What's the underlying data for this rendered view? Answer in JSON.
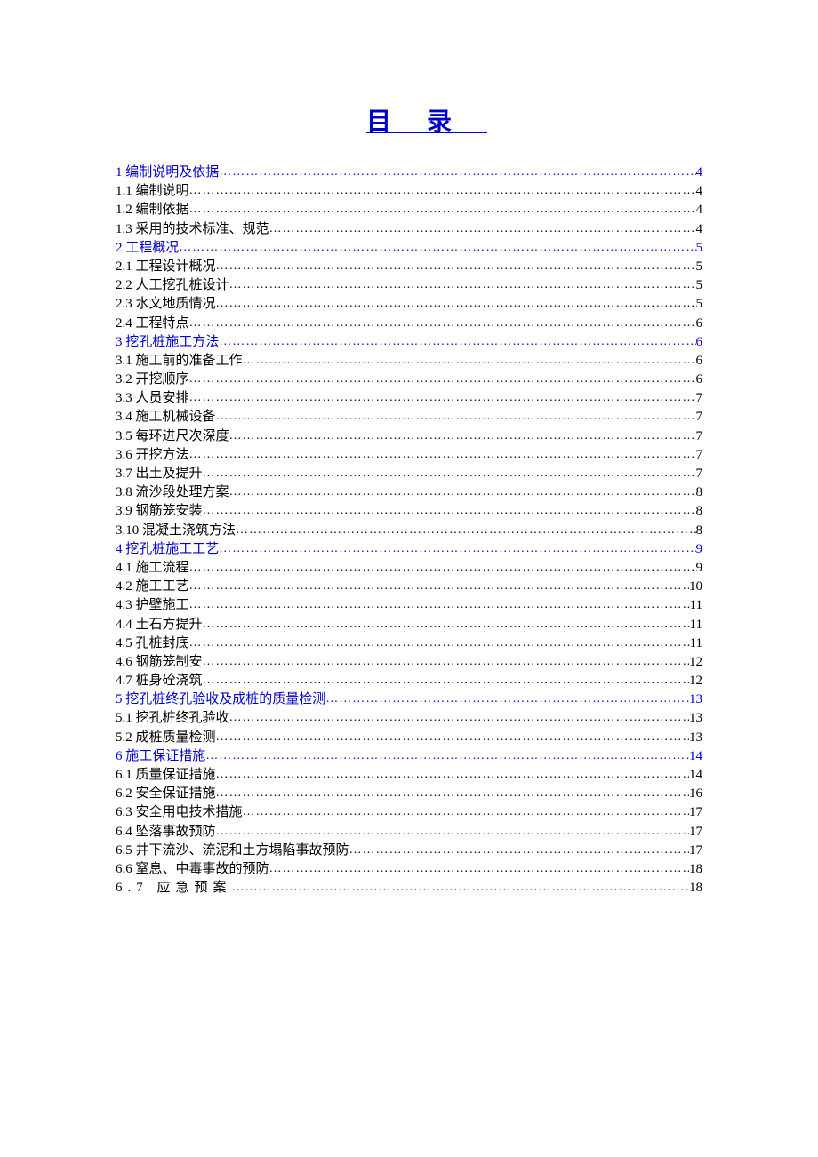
{
  "title": "目录",
  "colors": {
    "heading": "#0000cc",
    "text": "#000000",
    "background": "#ffffff"
  },
  "typography": {
    "title_fontsize": 28,
    "body_fontsize": 15,
    "font_family": "SimSun"
  },
  "toc": [
    {
      "level": 1,
      "label": "1 编制说明及依据",
      "page": "4"
    },
    {
      "level": 2,
      "label": "1.1  编制说明",
      "page": "4"
    },
    {
      "level": 2,
      "label": "1.2  编制依据",
      "page": "4"
    },
    {
      "level": 2,
      "label": "1.3  采用的技术标准、规范",
      "page": "4"
    },
    {
      "level": 1,
      "label": "2 工程概况",
      "page": "5"
    },
    {
      "level": 2,
      "label": "2.1 工程设计概况",
      "page": "5"
    },
    {
      "level": 2,
      "label": "2.2 人工挖孔桩设计",
      "page": "5"
    },
    {
      "level": 2,
      "label": "2.3 水文地质情况",
      "page": "5"
    },
    {
      "level": 2,
      "label": "2.4 工程特点",
      "page": "6"
    },
    {
      "level": 1,
      "label": "3 挖孔桩施工方法",
      "page": "6"
    },
    {
      "level": 2,
      "label": "3.1 施工前的准备工作",
      "page": "6"
    },
    {
      "level": 2,
      "label": "3.2 开挖顺序",
      "page": "6"
    },
    {
      "level": 2,
      "label": "3.3 人员安排",
      "page": "7"
    },
    {
      "level": 2,
      "label": "3.4 施工机械设备",
      "page": "7"
    },
    {
      "level": 2,
      "label": "3.5 每环进尺次深度",
      "page": "7"
    },
    {
      "level": 2,
      "label": "3.6 开挖方法",
      "page": "7"
    },
    {
      "level": 2,
      "label": "3.7 出土及提升",
      "page": "7"
    },
    {
      "level": 2,
      "label": "3.8 流沙段处理方案",
      "page": "8"
    },
    {
      "level": 2,
      "label": "3.9 钢筋笼安装",
      "page": "8"
    },
    {
      "level": 2,
      "label": "3.10 混凝土浇筑方法",
      "page": "8"
    },
    {
      "level": 1,
      "label": "4 挖孔桩施工工艺",
      "page": "9"
    },
    {
      "level": 2,
      "label": "4.1 施工流程",
      "page": "9"
    },
    {
      "level": 2,
      "label": "4.2 施工工艺",
      "page": "10"
    },
    {
      "level": 2,
      "label": "4.3 护壁施工",
      "page": "11"
    },
    {
      "level": 2,
      "label": "4.4 土石方提升",
      "page": "11"
    },
    {
      "level": 2,
      "label": "4.5 孔桩封底",
      "page": "11"
    },
    {
      "level": 2,
      "label": "4.6 钢筋笼制安",
      "page": "12"
    },
    {
      "level": 2,
      "label": "4.7 桩身砼浇筑",
      "page": "12"
    },
    {
      "level": 1,
      "label": "5 挖孔桩终孔验收及成桩的质量检测",
      "page": "13"
    },
    {
      "level": 2,
      "label": "5.1 挖孔桩终孔验收",
      "page": "13"
    },
    {
      "level": 2,
      "label": "5.2 成桩质量检测",
      "page": "13"
    },
    {
      "level": 1,
      "label": "6 施工保证措施",
      "page": "14"
    },
    {
      "level": 2,
      "label": "6.1 质量保证措施",
      "page": "14"
    },
    {
      "level": 2,
      "label": "6.2 安全保证措施",
      "page": "16"
    },
    {
      "level": 2,
      "label": "6.3 安全用电技术措施",
      "page": "17"
    },
    {
      "level": 2,
      "label": "6.4 坠落事故预防",
      "page": "17"
    },
    {
      "level": 2,
      "label": "6.5 井下流沙、流泥和土方塌陷事故预防",
      "page": "17"
    },
    {
      "level": 2,
      "label": "6.6 窒息、中毒事故的预防",
      "page": "18"
    },
    {
      "level": 2,
      "label": "6.7 应急预案",
      "page": "18",
      "spaced": true
    }
  ]
}
